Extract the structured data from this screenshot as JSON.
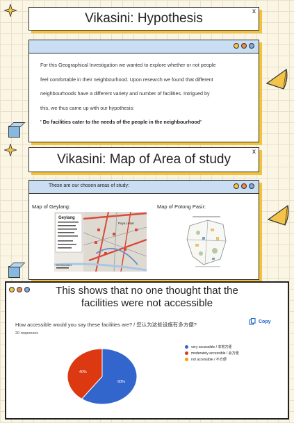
{
  "hypothesis": {
    "title": "Vikasini: Hypothesis",
    "close": "x",
    "lines": [
      "For this Geographical Investigation we wanted to explore whether or not people",
      "feel comfortable in their neighbourhood. Upon research we found that different",
      "neighbourhoods have a different variety and number of facilities. Intrigued by",
      "this, we thus came up with our hypothesis:"
    ],
    "statement": "' Do facilities cater to the needs of the people in the neighbourhood'"
  },
  "map_section": {
    "title": "Vikasini: Map of Area of study",
    "close": "x",
    "header_text": "These are our chosen areas of study:",
    "map_geylang_label": "Map of Geylang:",
    "map_potong_label": "Map of Potong Pasir:",
    "geylang_map_title": "Geylang",
    "geylang_roads": [
      "Paya Lebar"
    ],
    "scale_label": "0.5 Kilometers"
  },
  "survey": {
    "title_line1": "This shows that no one thought that the",
    "title_line2": "facilities were not accessible",
    "question": "How accessible would you say these facilities are? / 您认为这些设施有多方便?",
    "responses": "20 responses",
    "copy_label": "Copy",
    "legend": [
      {
        "label": "very accessible / 非常方便",
        "color": "#3366cc"
      },
      {
        "label": "moderately accessible / 会方便",
        "color": "#dc3912"
      },
      {
        "label": "not accessible / 不方便",
        "color": "#ff9900"
      }
    ]
  },
  "chart_data": {
    "type": "pie",
    "title": "How accessible would you say these facilities are? / 您认为这些设施有多方便?",
    "categories": [
      "very accessible / 非常方便",
      "moderately accessible / 会方便",
      "not accessible / 不方便"
    ],
    "values": [
      60,
      40,
      0
    ],
    "labels": [
      "60%",
      "40%",
      ""
    ],
    "colors": [
      "#3366cc",
      "#dc3912",
      "#ff9900"
    ],
    "legend": "right"
  },
  "colors": {
    "accent_yellow": "#f2c23a",
    "bar_blue": "#c9def2",
    "dot_yellow": "#f3c449",
    "dot_orange": "#e98a4b",
    "dot_blue": "#7fa8dd"
  }
}
